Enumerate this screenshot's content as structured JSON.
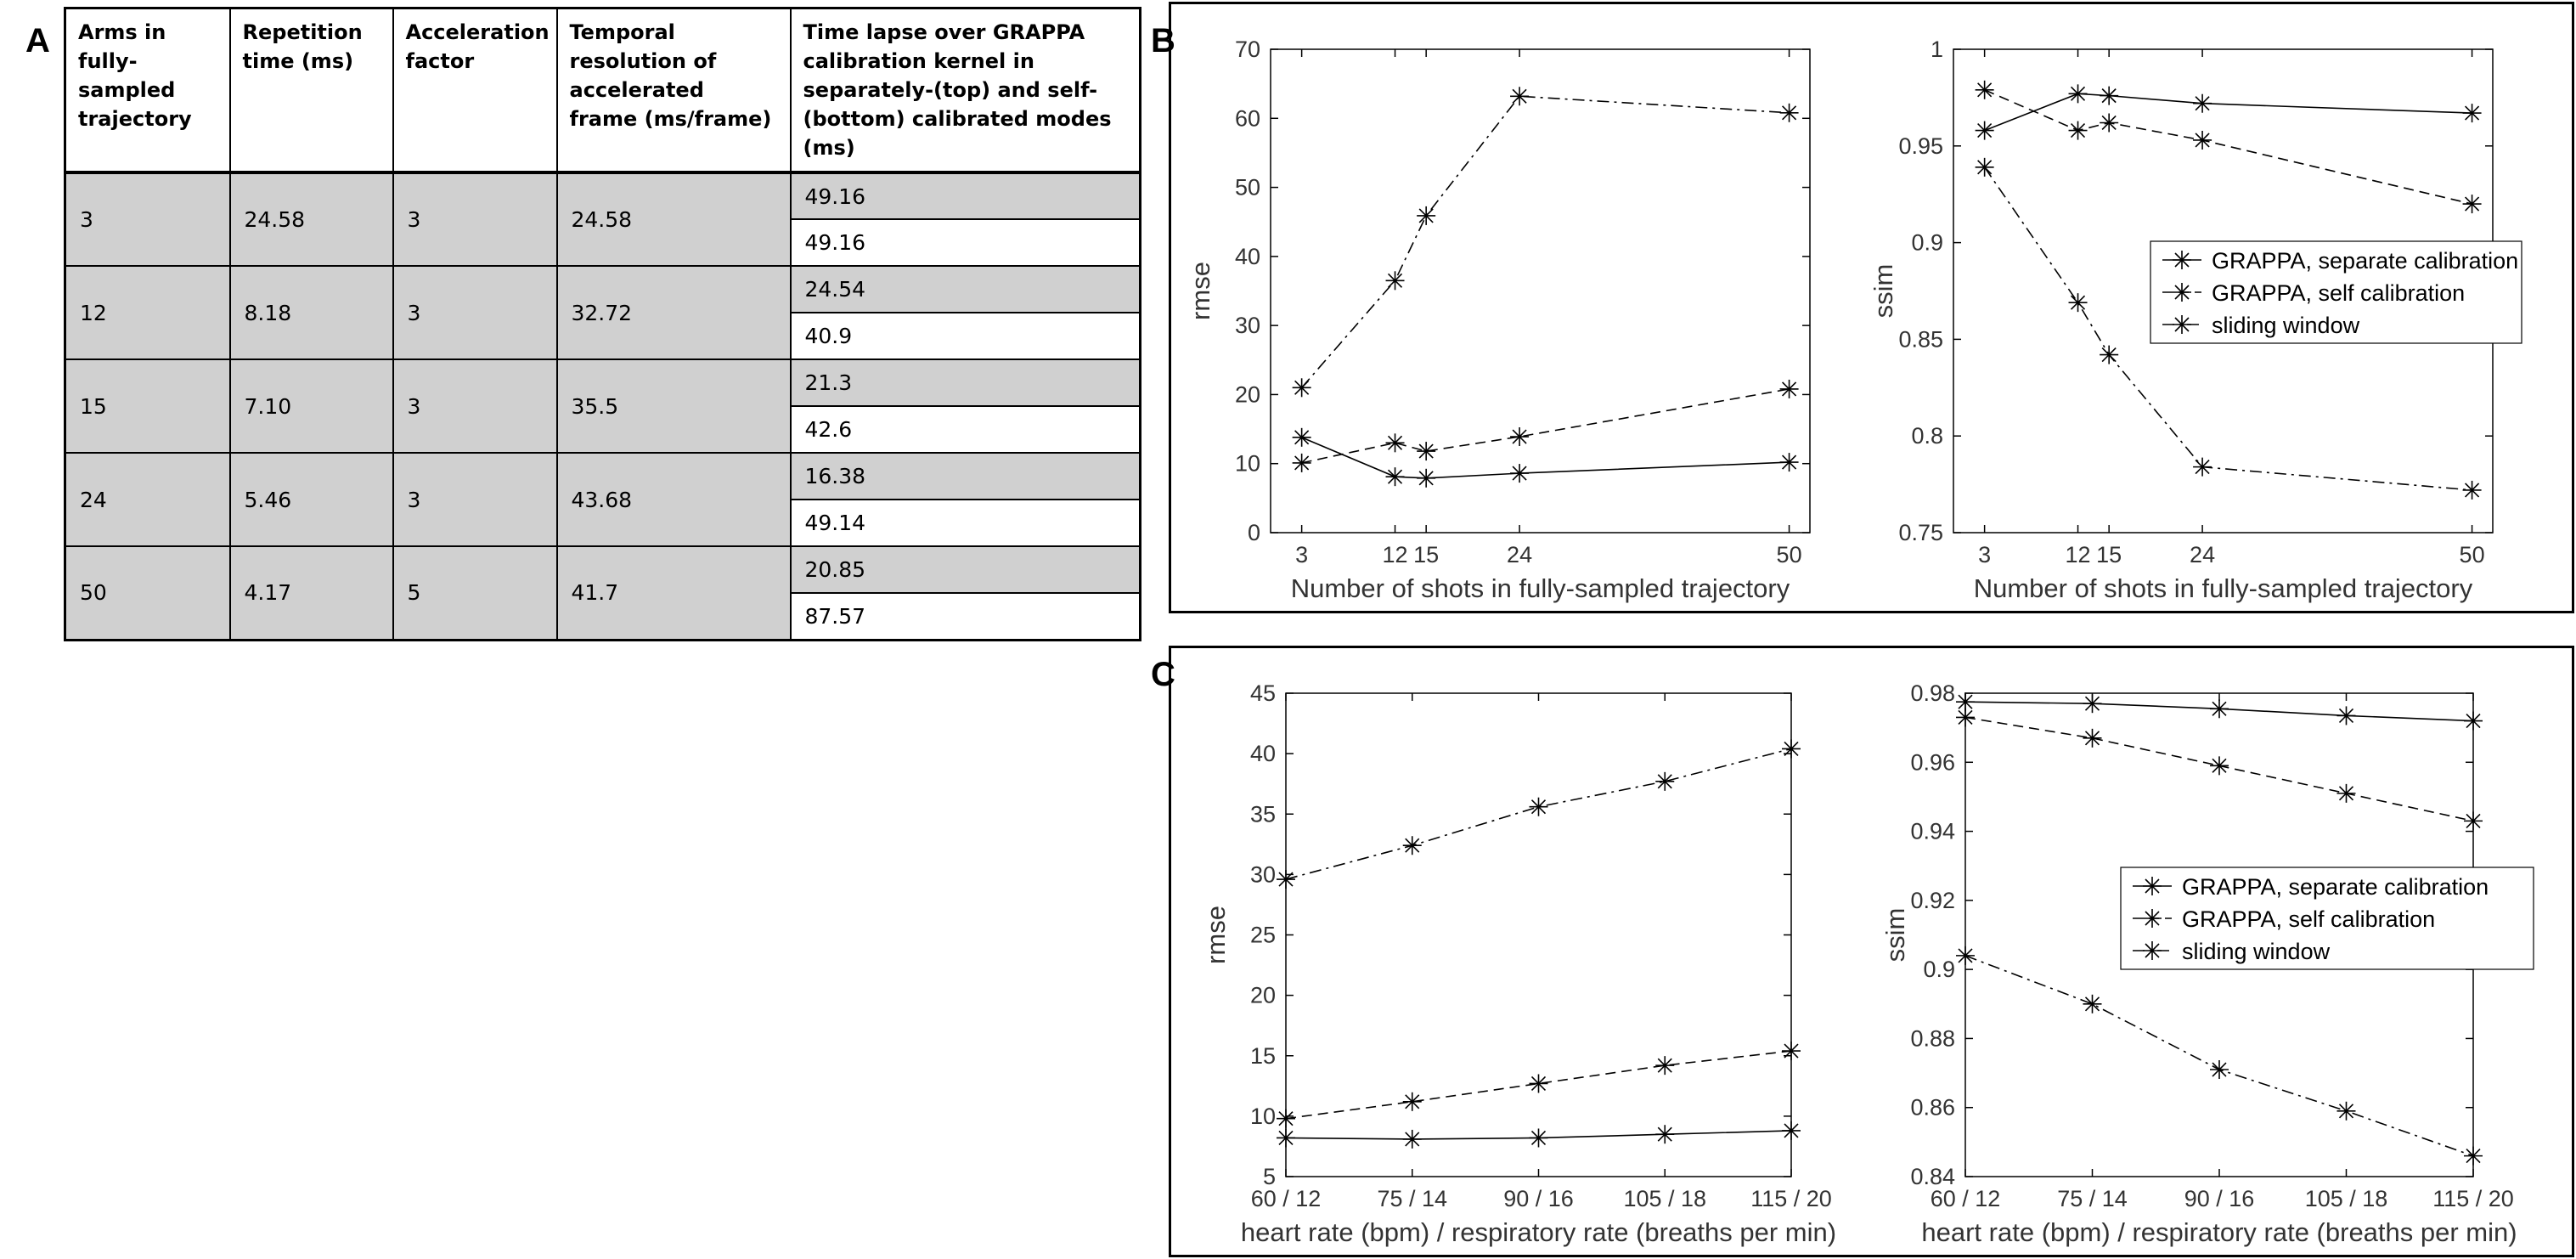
{
  "panels": {
    "a": "A",
    "b": "B",
    "c": "C"
  },
  "table": {
    "headers": [
      "Arms in fully-sampled trajectory",
      "Repetition time (ms)",
      "Acceleration factor",
      "Temporal resolution of accelerated frame (ms/frame)",
      "Time lapse over GRAPPA calibration kernel in separately-(top) and self- (bottom) calibrated modes (ms)"
    ],
    "rows": [
      {
        "arms": "3",
        "tr": "24.58",
        "accel": "3",
        "temporal": "24.58",
        "top": "49.16",
        "bottom": "49.16"
      },
      {
        "arms": "12",
        "tr": "8.18",
        "accel": "3",
        "temporal": "32.72",
        "top": "24.54",
        "bottom": "40.9"
      },
      {
        "arms": "15",
        "tr": "7.10",
        "accel": "3",
        "temporal": "35.5",
        "top": "21.3",
        "bottom": "42.6"
      },
      {
        "arms": "24",
        "tr": "5.46",
        "accel": "3",
        "temporal": "43.68",
        "top": "16.38",
        "bottom": "49.14"
      },
      {
        "arms": "50",
        "tr": "4.17",
        "accel": "5",
        "temporal": "41.7",
        "top": "20.85",
        "bottom": "87.57"
      }
    ]
  },
  "chart_data": [
    {
      "id": "b-rmse",
      "type": "line",
      "xlabel": "Number of shots in fully-sampled trajectory",
      "ylabel": "rmse",
      "xlim": [
        0,
        52
      ],
      "ylim": [
        0,
        70
      ],
      "xticks": [
        3,
        12,
        15,
        24,
        50
      ],
      "xtick_labels": [
        "3",
        "12",
        "15",
        "24",
        "50"
      ],
      "yticks": [
        0,
        10,
        20,
        30,
        40,
        50,
        60,
        70
      ],
      "yticks_labels": [
        "0",
        "10",
        "20",
        "30",
        "40",
        "50",
        "60",
        "70"
      ],
      "x": [
        3,
        12,
        15,
        24,
        50
      ],
      "series": [
        {
          "style": "solid",
          "values": [
            13.8,
            8.1,
            7.9,
            8.6,
            10.2
          ]
        },
        {
          "style": "dashed",
          "values": [
            10.1,
            13.0,
            11.8,
            13.9,
            20.8
          ]
        },
        {
          "style": "dashdot",
          "values": [
            21.0,
            36.5,
            45.9,
            63.2,
            60.8
          ]
        }
      ],
      "legend": null
    },
    {
      "id": "b-ssim",
      "type": "line",
      "xlabel": "Number of shots in fully-sampled trajectory",
      "ylabel": "ssim",
      "xlim": [
        0,
        52
      ],
      "ylim": [
        0.75,
        1.0
      ],
      "xticks": [
        3,
        12,
        15,
        24,
        50
      ],
      "xtick_labels": [
        "3",
        "12",
        "15",
        "24",
        "50"
      ],
      "yticks": [
        0.75,
        0.8,
        0.85,
        0.9,
        0.95,
        1.0
      ],
      "yticks_labels": [
        "0.75",
        "0.8",
        "0.85",
        "0.9",
        "0.95",
        "1"
      ],
      "x": [
        3,
        12,
        15,
        24,
        50
      ],
      "series": [
        {
          "name": "GRAPPA, separate calibration",
          "style": "solid",
          "values": [
            0.958,
            0.977,
            0.976,
            0.972,
            0.967
          ]
        },
        {
          "name": "GRAPPA, self calibration",
          "style": "dashed",
          "values": [
            0.979,
            0.958,
            0.962,
            0.953,
            0.92
          ]
        },
        {
          "name": "sliding window",
          "style": "dashdot",
          "values": [
            0.939,
            0.869,
            0.842,
            0.784,
            0.772
          ]
        }
      ],
      "legend": "right"
    },
    {
      "id": "c-rmse",
      "type": "line",
      "xlabel": "heart rate (bpm) / respiratory rate (breaths per min)",
      "ylabel": "rmse",
      "xlim": [
        0,
        4
      ],
      "ylim": [
        5,
        45
      ],
      "xticks": [
        0,
        1,
        2,
        3,
        4
      ],
      "xtick_labels": [
        "60 / 12",
        "75 / 14",
        "90 / 16",
        "105 / 18",
        "115 / 20"
      ],
      "yticks": [
        5,
        10,
        15,
        20,
        25,
        30,
        35,
        40,
        45
      ],
      "yticks_labels": [
        "5",
        "10",
        "15",
        "20",
        "25",
        "30",
        "35",
        "40",
        "45"
      ],
      "x": [
        0,
        1,
        2,
        3,
        4
      ],
      "series": [
        {
          "style": "solid",
          "values": [
            8.2,
            8.1,
            8.2,
            8.5,
            8.8
          ]
        },
        {
          "style": "dashed",
          "values": [
            9.8,
            11.2,
            12.7,
            14.2,
            15.4
          ]
        },
        {
          "style": "dashdot",
          "values": [
            29.6,
            32.4,
            35.6,
            37.7,
            40.4
          ]
        }
      ],
      "legend": null
    },
    {
      "id": "c-ssim",
      "type": "line",
      "xlabel": "heart rate (bpm) / respiratory rate (breaths per min)",
      "ylabel": "ssim",
      "xlim": [
        0,
        4
      ],
      "ylim": [
        0.84,
        0.98
      ],
      "xticks": [
        0,
        1,
        2,
        3,
        4
      ],
      "xtick_labels": [
        "60 / 12",
        "75 / 14",
        "90 / 16",
        "105 / 18",
        "115 / 20"
      ],
      "yticks": [
        0.84,
        0.86,
        0.88,
        0.9,
        0.92,
        0.94,
        0.96,
        0.98
      ],
      "yticks_labels": [
        "0.84",
        "0.86",
        "0.88",
        "0.9",
        "0.92",
        "0.94",
        "0.96",
        "0.98"
      ],
      "x": [
        0,
        1,
        2,
        3,
        4
      ],
      "series": [
        {
          "name": "GRAPPA, separate calibration",
          "style": "solid",
          "values": [
            0.9775,
            0.977,
            0.9755,
            0.9735,
            0.972
          ]
        },
        {
          "name": "GRAPPA, self calibration",
          "style": "dashed",
          "values": [
            0.973,
            0.967,
            0.959,
            0.951,
            0.943
          ]
        },
        {
          "name": "sliding window",
          "style": "dashdot",
          "values": [
            0.904,
            0.89,
            0.871,
            0.859,
            0.846
          ]
        }
      ],
      "legend": "right"
    }
  ]
}
